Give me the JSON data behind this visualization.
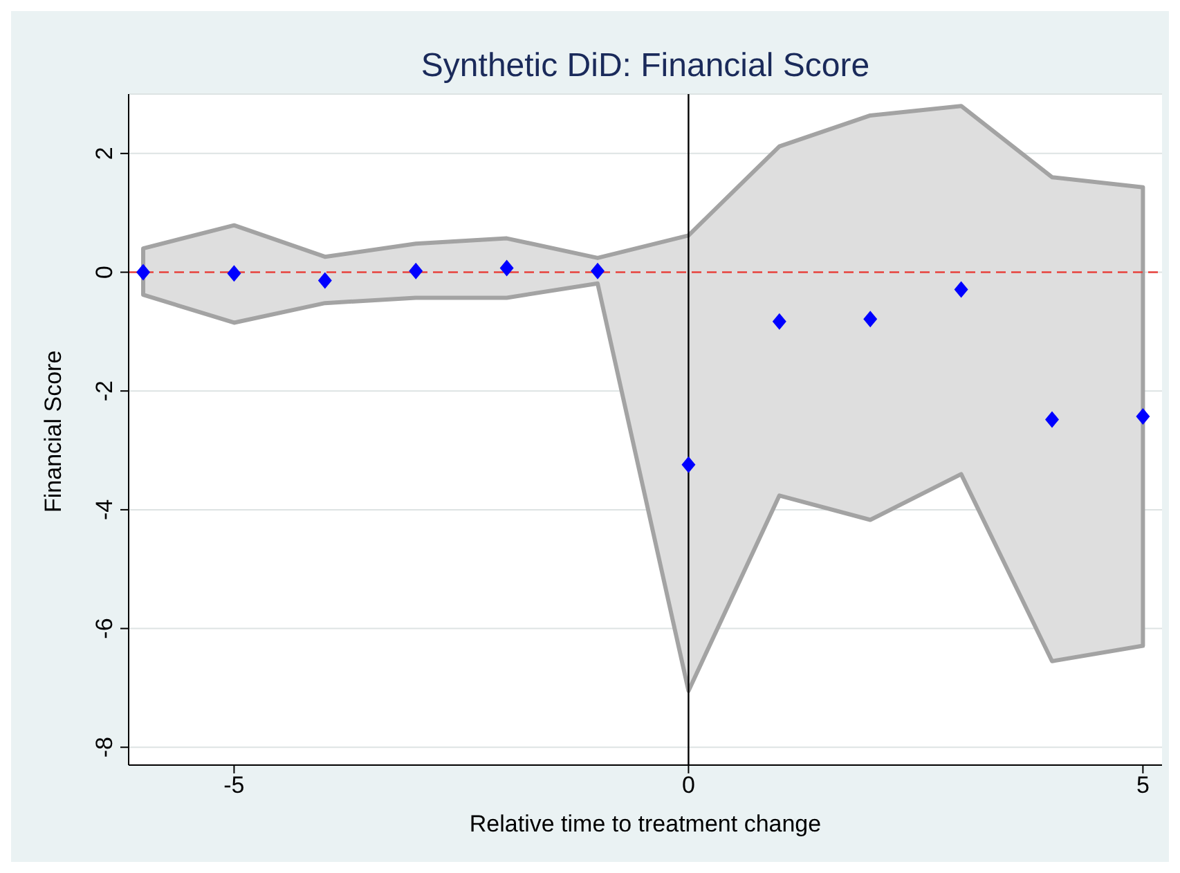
{
  "chart_data": {
    "type": "scatter",
    "title": "Synthetic DiD: Financial Score",
    "xlabel": "Relative time to treatment change",
    "ylabel": "Financial Score",
    "x": [
      -6,
      -5,
      -4,
      -3,
      -2,
      -1,
      0,
      1,
      2,
      3,
      4,
      5
    ],
    "series": [
      {
        "color": "#0000ff",
        "values": [
          0,
          -0.02,
          -0.14,
          0.02,
          0.07,
          0.02,
          -3.24,
          -0.83,
          -0.79,
          -0.29,
          -2.48,
          -2.43
        ],
        "lower": [
          -0.38,
          -0.85,
          -0.52,
          -0.43,
          -0.43,
          -0.19,
          -7.05,
          -3.76,
          -4.17,
          -3.4,
          -6.55,
          -6.29
        ],
        "upper": [
          0.4,
          0.79,
          0.26,
          0.48,
          0.57,
          0.24,
          0.62,
          2.12,
          2.64,
          2.8,
          1.6,
          1.43
        ]
      }
    ],
    "marker": "diamond",
    "xlim": [
      -6.16,
      5.21
    ],
    "xticks": [
      -5,
      0,
      5
    ],
    "ylim": [
      -8.3,
      3
    ],
    "yticks": [
      -8,
      -6,
      -4,
      -2,
      0,
      2
    ],
    "grid": "y",
    "legend": false,
    "ref_lines": [
      {
        "axis": "y",
        "value": 0,
        "color": "#e8413c",
        "line_style": "dashed"
      },
      {
        "axis": "x",
        "value": 0,
        "color": "#000000",
        "line_style": "solid"
      }
    ]
  }
}
